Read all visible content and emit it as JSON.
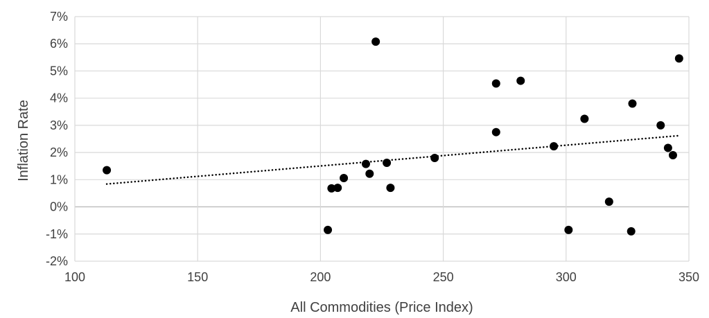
{
  "chart_data": {
    "type": "scatter",
    "title": "",
    "xlabel": "All Commodities (Price Index)",
    "ylabel": "Inflation Rate",
    "xlim": [
      100,
      350
    ],
    "ylim": [
      -2,
      7
    ],
    "x_ticks": [
      100,
      150,
      200,
      250,
      300,
      350
    ],
    "x_tick_labels": [
      "100",
      "150",
      "200",
      "250",
      "300",
      "350"
    ],
    "y_ticks": [
      -2,
      -1,
      0,
      1,
      2,
      3,
      4,
      5,
      6,
      7
    ],
    "y_tick_labels": [
      "-2%",
      "-1%",
      "0%",
      "1%",
      "2%",
      "3%",
      "4%",
      "5%",
      "6%",
      "7%"
    ],
    "grid": true,
    "legend": "none",
    "marker_color": "#000000",
    "gridline_color": "#d9d9d9",
    "zero_line_color": "#bfbfbf",
    "trendline": {
      "type": "linear",
      "style": "dotted",
      "color": "#000000",
      "x_start": 113,
      "y_start": 0.84,
      "x_end": 346,
      "y_end": 2.62
    },
    "series": [
      {
        "points": [
          {
            "x": 113,
            "y": 1.35
          },
          {
            "x": 203,
            "y": -0.85
          },
          {
            "x": 204.5,
            "y": 0.68
          },
          {
            "x": 207,
            "y": 0.7
          },
          {
            "x": 209.5,
            "y": 1.06
          },
          {
            "x": 218.5,
            "y": 1.58
          },
          {
            "x": 220,
            "y": 1.22
          },
          {
            "x": 222.5,
            "y": 6.08
          },
          {
            "x": 227,
            "y": 1.62
          },
          {
            "x": 228.5,
            "y": 0.7
          },
          {
            "x": 246.5,
            "y": 1.8
          },
          {
            "x": 271.5,
            "y": 4.54
          },
          {
            "x": 271.5,
            "y": 2.75
          },
          {
            "x": 281.5,
            "y": 4.64
          },
          {
            "x": 295,
            "y": 2.23
          },
          {
            "x": 301,
            "y": -0.85
          },
          {
            "x": 307.5,
            "y": 3.24
          },
          {
            "x": 317.5,
            "y": 0.19
          },
          {
            "x": 326.5,
            "y": -0.9
          },
          {
            "x": 327,
            "y": 3.8
          },
          {
            "x": 338.5,
            "y": 3.0
          },
          {
            "x": 341.5,
            "y": 2.17
          },
          {
            "x": 343.5,
            "y": 1.9
          },
          {
            "x": 346,
            "y": 5.46
          }
        ]
      }
    ]
  }
}
